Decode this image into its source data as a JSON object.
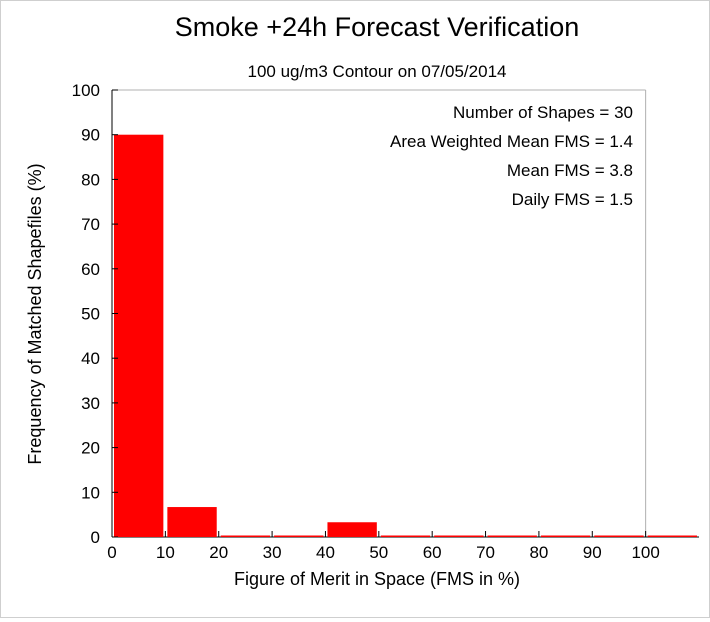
{
  "chart_data": {
    "type": "bar",
    "title": "Smoke +24h Forecast Verification",
    "subtitle": "100 ug/m3 Contour on 07/05/2014",
    "xlabel": "Figure of Merit in Space (FMS in %)",
    "ylabel": "Frequency of Matched Shapefiles (%)",
    "xlim": [
      0,
      110
    ],
    "ylim": [
      0,
      100
    ],
    "xticks": [
      0,
      10,
      20,
      30,
      40,
      50,
      60,
      70,
      80,
      90,
      100
    ],
    "yticks": [
      0,
      10,
      20,
      30,
      40,
      50,
      60,
      70,
      80,
      90,
      100
    ],
    "bins": [
      {
        "start": 0,
        "end": 10,
        "value": 90
      },
      {
        "start": 10,
        "end": 20,
        "value": 6.7
      },
      {
        "start": 20,
        "end": 30,
        "value": 0
      },
      {
        "start": 30,
        "end": 40,
        "value": 0
      },
      {
        "start": 40,
        "end": 50,
        "value": 3.3
      },
      {
        "start": 50,
        "end": 60,
        "value": 0
      },
      {
        "start": 60,
        "end": 70,
        "value": 0
      },
      {
        "start": 70,
        "end": 80,
        "value": 0
      },
      {
        "start": 80,
        "end": 90,
        "value": 0
      },
      {
        "start": 90,
        "end": 100,
        "value": 0
      },
      {
        "start": 100,
        "end": 110,
        "value": 0
      }
    ],
    "bar_color": "#ff0000",
    "grid": false,
    "stats": [
      "Number of Shapes = 30",
      "Area Weighted Mean FMS = 1.4",
      "Mean FMS = 3.8",
      "Daily FMS = 1.5"
    ]
  }
}
